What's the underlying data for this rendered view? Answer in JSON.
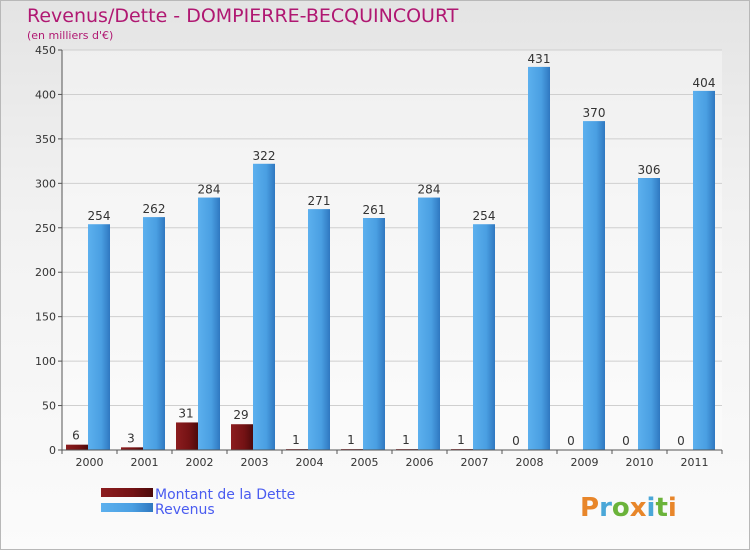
{
  "chart_data": {
    "type": "bar",
    "title": "Revenus/Dette - DOMPIERRE-BECQUINCOURT",
    "subtitle": "(en milliers d'€)",
    "categories": [
      "2000",
      "2001",
      "2002",
      "2003",
      "2004",
      "2005",
      "2006",
      "2007",
      "2008",
      "2009",
      "2010",
      "2011"
    ],
    "series": [
      {
        "name": "Montant de la Dette",
        "color": "#7a1416",
        "values": [
          6,
          3,
          31,
          29,
          1,
          1,
          1,
          1,
          0,
          0,
          0,
          0
        ]
      },
      {
        "name": "Revenus",
        "color": "#4fa3e4",
        "values": [
          254,
          262,
          284,
          322,
          271,
          261,
          284,
          254,
          431,
          370,
          306,
          404
        ]
      }
    ],
    "ylim": [
      0,
      450
    ],
    "yticks": [
      0,
      50,
      100,
      150,
      200,
      250,
      300,
      350,
      400,
      450
    ],
    "grid": true,
    "legend": "bottom-left"
  },
  "logo": {
    "letters": [
      "P",
      "r",
      "o",
      "x",
      "i",
      "t",
      "i"
    ],
    "colors": [
      "#e8862a",
      "#4aa7d8",
      "#6bb33a",
      "#e8862a",
      "#4aa7d8",
      "#6bb33a",
      "#e8862a"
    ]
  }
}
